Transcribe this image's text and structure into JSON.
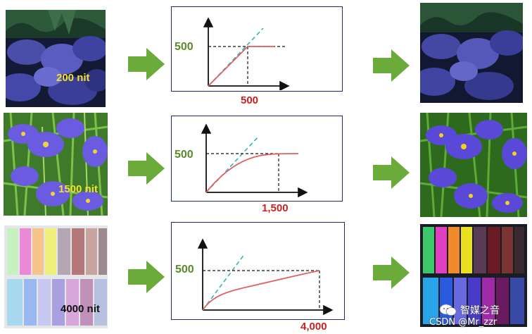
{
  "rows": [
    {
      "input_label": "200 nit",
      "peak_label": "500",
      "x_label": "500"
    },
    {
      "input_label": "1500 nit",
      "peak_label": "500",
      "x_label": "1,500"
    },
    {
      "input_label": "4000 nit",
      "peak_label": "500",
      "x_label": "4,000"
    }
  ],
  "colors": {
    "arrow": "#6aab3a",
    "curve": "#e06060",
    "reference": "#33b5b5",
    "axis": "#111111",
    "panel_border": "#1e2a6b",
    "peak_text": "#5a8a2a",
    "x_text": "#cc2020"
  },
  "watermark": {
    "brand": "智媒之音",
    "credit": "CSDN @Mr_zzr",
    "icon": "wechat-icon"
  }
}
